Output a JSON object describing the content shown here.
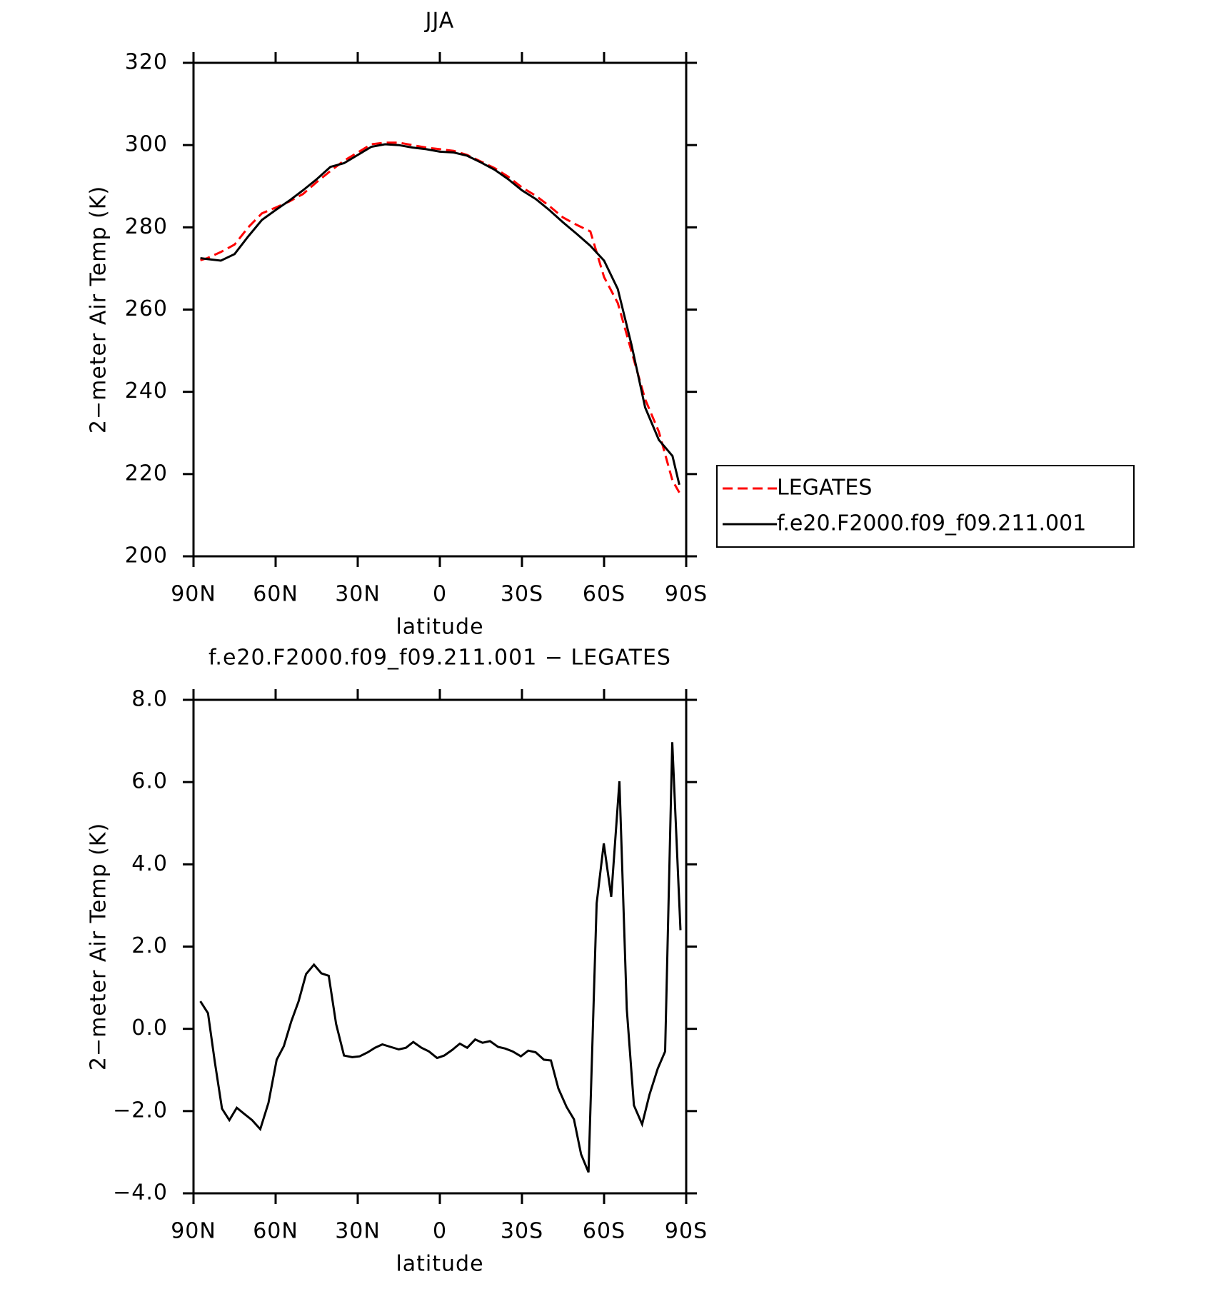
{
  "chart_data": [
    {
      "type": "line",
      "title": "JJA",
      "x_label": "latitude",
      "y_label": "2−meter Air Temp (K)",
      "x": [
        87.5,
        85,
        80,
        75,
        70,
        65,
        60,
        55,
        50,
        45,
        40,
        35,
        30,
        25,
        20,
        15,
        10,
        5,
        0,
        -5,
        -10,
        -15,
        -20,
        -25,
        -30,
        -35,
        -40,
        -45,
        -50,
        -55,
        -60,
        -65,
        -70,
        -75,
        -80,
        -85,
        -87.5
      ],
      "series": [
        {
          "name": "LEGATES",
          "color": "#ff0000",
          "style": "dashed",
          "values": [
            272,
            272.5,
            274,
            275.8,
            280,
            283.4,
            284.8,
            286.3,
            288.1,
            291,
            293.7,
            296.2,
            298.2,
            300.2,
            300.6,
            300.6,
            300,
            299.4,
            299,
            298.6,
            297.6,
            296,
            294.4,
            292.3,
            289.7,
            287.7,
            285.2,
            282.4,
            280.6,
            279,
            267.9,
            261.6,
            249.9,
            238.2,
            230.3,
            218.4,
            215.5
          ]
        },
        {
          "name": "f.e20.F2000.f09_f09.211.001",
          "color": "#000000",
          "style": "solid",
          "values": [
            272.5,
            272.3,
            271.9,
            273.5,
            277.8,
            281.8,
            284.2,
            286.5,
            289,
            291.7,
            294.7,
            295.6,
            297.6,
            299.6,
            300.2,
            300,
            299.4,
            299,
            298.4,
            298.2,
            297.4,
            295.8,
            294,
            291.7,
            289,
            286.9,
            284.2,
            281.2,
            278.4,
            275.5,
            271.9,
            265,
            251.5,
            236.2,
            228.3,
            224.4,
            217.4
          ]
        }
      ],
      "xlim": [
        90,
        -90
      ],
      "xticks": [
        {
          "value": 90,
          "label": "90N"
        },
        {
          "value": 60,
          "label": "60N"
        },
        {
          "value": 30,
          "label": "30N"
        },
        0,
        {
          "value": -30,
          "label": "30S"
        },
        {
          "value": -60,
          "label": "60S"
        },
        {
          "value": -90,
          "label": "90S"
        }
      ],
      "ylim": [
        200,
        320
      ],
      "yticks": [
        200,
        220,
        240,
        260,
        280,
        300,
        320
      ],
      "legend": "right"
    },
    {
      "type": "line",
      "title": "f.e20.F2000.f09_f09.211.001 − LEGATES",
      "x_label": "latitude",
      "y_label": "2−meter Air Temp (K)",
      "x": [
        87.5,
        84.7,
        82.2,
        79.6,
        76.9,
        74.2,
        71.6,
        68.6,
        65.6,
        62.6,
        59.6,
        57.0,
        54.3,
        51.6,
        48.9,
        46.0,
        43.3,
        40.6,
        37.9,
        35.0,
        32.0,
        29.3,
        26.3,
        23.7,
        21.0,
        18.0,
        15.0,
        12.4,
        9.7,
        6.7,
        4.0,
        1.0,
        -1.6,
        -4.6,
        -7.3,
        -10.0,
        -12.9,
        -15.6,
        -18.3,
        -21.3,
        -23.9,
        -26.6,
        -29.6,
        -32.3,
        -35.0,
        -38.0,
        -40.6,
        -43.3,
        -46.3,
        -49.0,
        -51.6,
        -54.3,
        -57.3,
        -59.9,
        -62.6,
        -65.6,
        -68.3,
        -70.9,
        -73.9,
        -76.6,
        -79.6,
        -82.3,
        -84.9,
        -87.9
      ],
      "series": [
        {
          "color": "#000000",
          "style": "solid",
          "values": [
            0.67,
            0.38,
            -0.81,
            -1.94,
            -2.22,
            -1.92,
            -2.06,
            -2.22,
            -2.44,
            -1.8,
            -0.75,
            -0.42,
            0.18,
            0.67,
            1.33,
            1.56,
            1.35,
            1.29,
            0.12,
            -0.65,
            -0.69,
            -0.67,
            -0.57,
            -0.46,
            -0.38,
            -0.44,
            -0.5,
            -0.46,
            -0.32,
            -0.46,
            -0.55,
            -0.71,
            -0.65,
            -0.51,
            -0.36,
            -0.46,
            -0.26,
            -0.34,
            -0.3,
            -0.44,
            -0.48,
            -0.55,
            -0.67,
            -0.53,
            -0.57,
            -0.75,
            -0.77,
            -1.45,
            -1.9,
            -2.2,
            -3.05,
            -3.49,
            3.05,
            4.51,
            3.21,
            6.02,
            0.48,
            -1.86,
            -2.32,
            -1.6,
            -0.97,
            -0.55,
            6.97,
            2.4
          ]
        }
      ],
      "xlim": [
        90,
        -90
      ],
      "xticks": [
        {
          "value": 90,
          "label": "90N"
        },
        {
          "value": 60,
          "label": "60N"
        },
        {
          "value": 30,
          "label": "30N"
        },
        0,
        {
          "value": -30,
          "label": "30S"
        },
        {
          "value": -60,
          "label": "60S"
        },
        {
          "value": -90,
          "label": "90S"
        }
      ],
      "ylim": [
        -4,
        8
      ],
      "yticks": [
        {
          "value": -4,
          "label": "−4.0"
        },
        {
          "value": -2,
          "label": "−2.0"
        },
        {
          "value": 0,
          "label": "0.0"
        },
        {
          "value": 2,
          "label": "2.0"
        },
        {
          "value": 4,
          "label": "4.0"
        },
        {
          "value": 6,
          "label": "6.0"
        },
        {
          "value": 8,
          "label": "8.0"
        }
      ]
    }
  ]
}
